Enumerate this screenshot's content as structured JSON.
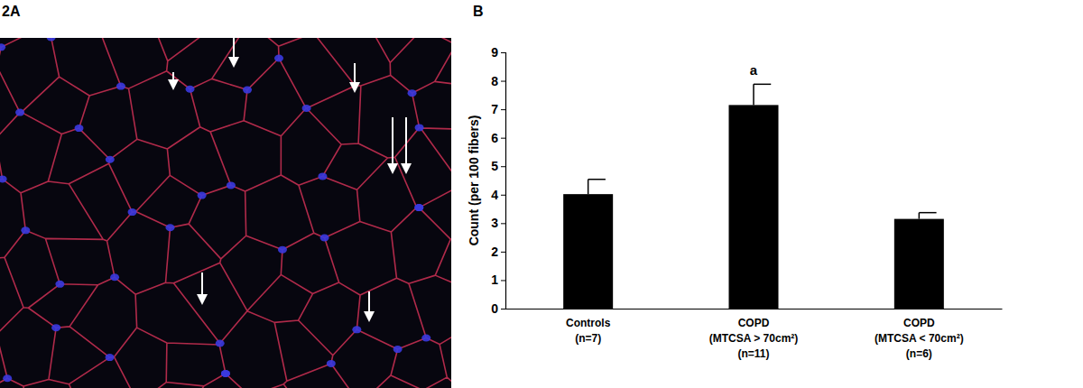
{
  "panel_labels": [
    "2A",
    "B"
  ],
  "chart_data": {
    "type": "bar",
    "categories": [
      "Controls\n(n=7)",
      "COPD\n(MTCSA > 70cm²)\n(n=11)",
      "COPD\n(MTCSA < 70cm²)\n(n=6)"
    ],
    "values": [
      4.02,
      7.15,
      3.15
    ],
    "errors": [
      0.52,
      0.73,
      0.22
    ],
    "significance": [
      null,
      "a",
      null
    ],
    "y_label": "Count (per 100 fibers)",
    "color": "#000000",
    "ylim": [
      0,
      9
    ],
    "yticks": [
      0,
      1,
      2,
      3,
      4,
      5,
      6,
      7,
      8,
      9
    ],
    "grid": false
  }
}
